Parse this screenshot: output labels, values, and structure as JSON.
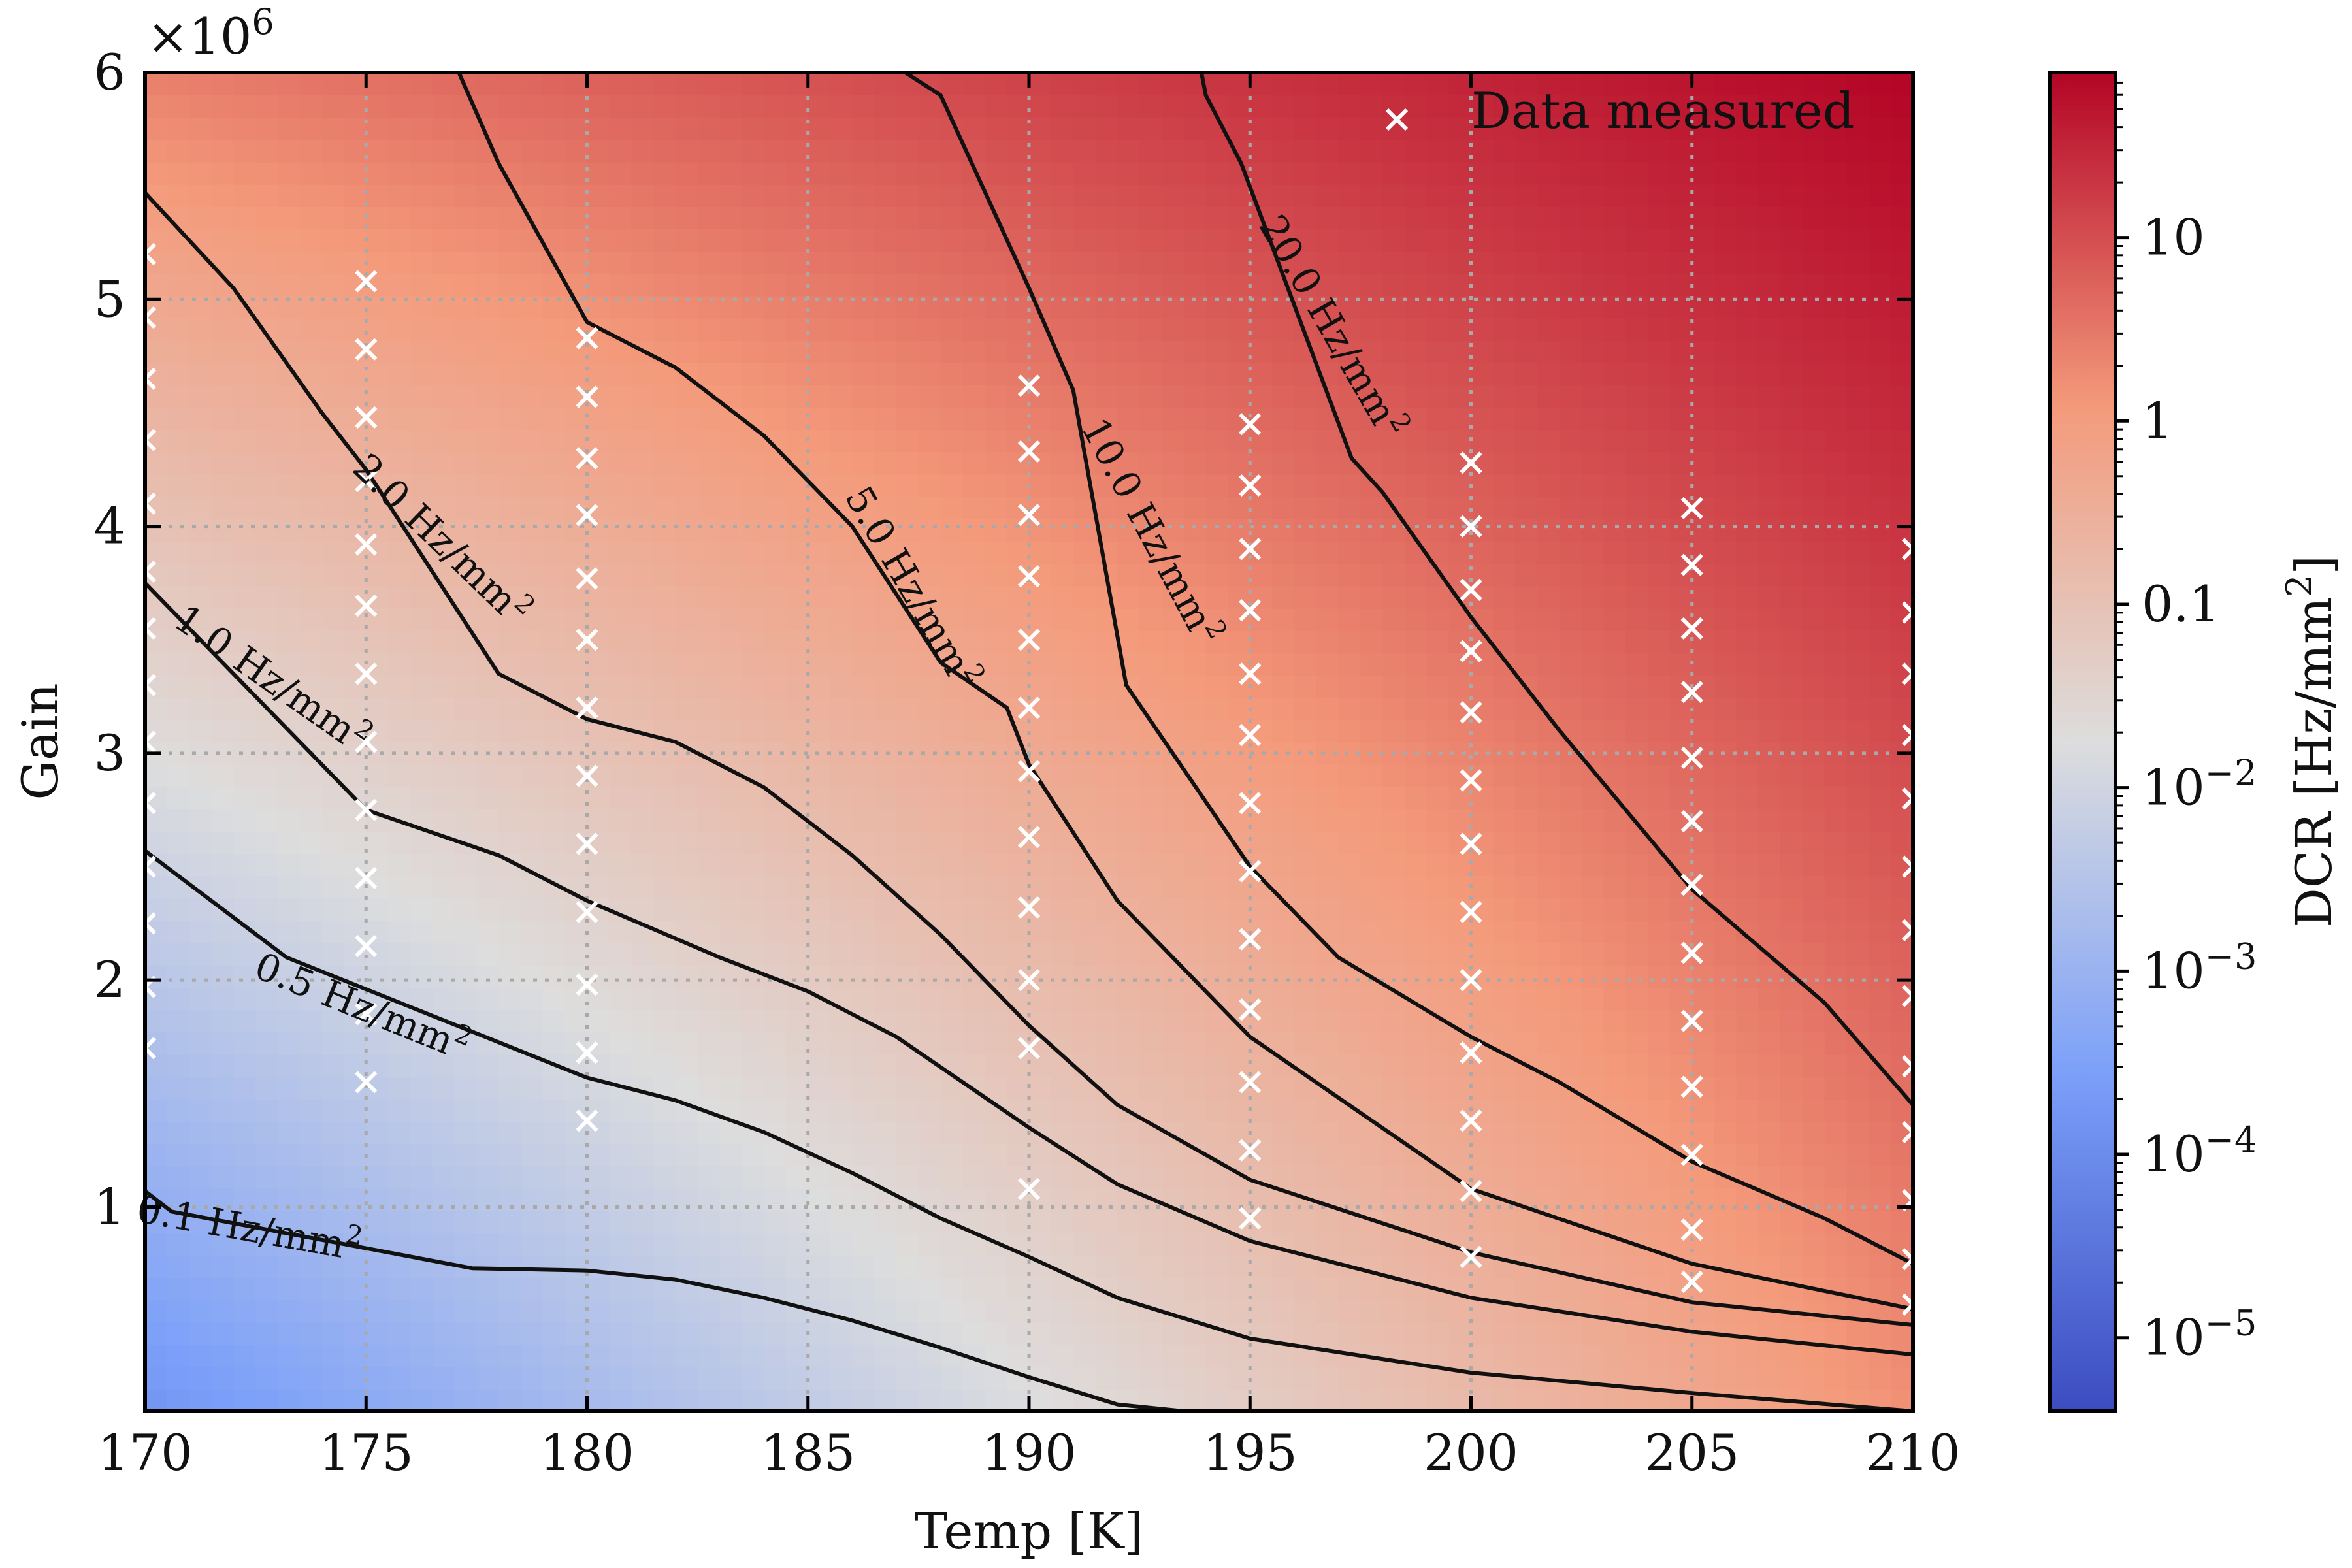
{
  "chart_data": {
    "type": "heatmap",
    "xlabel": "Temp [K]",
    "ylabel": "Gain",
    "y_offset_label": "×10",
    "y_offset_exp": "6",
    "xlim": [
      170,
      210
    ],
    "ylim": [
      0.1,
      6.0
    ],
    "x_ticks": [
      170,
      175,
      180,
      185,
      190,
      195,
      200,
      205,
      210
    ],
    "x_tick_labels": [
      "170",
      "175",
      "180",
      "185",
      "190",
      "195",
      "200",
      "205",
      "210"
    ],
    "y_ticks": [
      1,
      2,
      3,
      4,
      5,
      6
    ],
    "y_tick_labels": [
      "1",
      "2",
      "3",
      "4",
      "5",
      "6"
    ],
    "grid": true,
    "legend": {
      "label": "Data measured",
      "marker": "x",
      "marker_color": "#ffffff",
      "placement": "top-right"
    },
    "colorbar": {
      "label_main": "DCR [Hz/mm",
      "label_sup": "2",
      "label_end": "]",
      "scale": "log",
      "colormap": "coolwarm",
      "range_log10": [
        -5.4,
        1.9
      ],
      "ticks": [
        {
          "log10": 1,
          "base": "10",
          "sup": ""
        },
        {
          "log10": 0,
          "base": "1",
          "sup": ""
        },
        {
          "log10": -1,
          "base": "0.1",
          "sup": ""
        },
        {
          "log10": -2,
          "base": "10",
          "sup": "−2"
        },
        {
          "log10": -3,
          "base": "10",
          "sup": "−3"
        },
        {
          "log10": -4,
          "base": "10",
          "sup": "−4"
        },
        {
          "log10": -5,
          "base": "10",
          "sup": "−5"
        }
      ]
    },
    "field_corners_log10": {
      "x170_y0p1": -3.8,
      "x210_y0p1": 0.2,
      "x170_y6": 0.4,
      "x210_y6": 1.9
    },
    "measured_points": [
      {
        "x": 170,
        "y": [
          1.7,
          1.97,
          2.25,
          2.5,
          2.78,
          3.05,
          3.3,
          3.55,
          3.8,
          4.1,
          4.38,
          4.65,
          4.92,
          5.2
        ]
      },
      {
        "x": 175,
        "y": [
          1.55,
          1.85,
          2.15,
          2.45,
          2.75,
          3.05,
          3.35,
          3.65,
          3.92,
          4.2,
          4.48,
          4.78,
          5.08
        ]
      },
      {
        "x": 180,
        "y": [
          1.38,
          1.68,
          1.98,
          2.3,
          2.6,
          2.9,
          3.2,
          3.5,
          3.77,
          4.05,
          4.3,
          4.57,
          4.83
        ]
      },
      {
        "x": 190,
        "y": [
          1.08,
          1.7,
          2.0,
          2.32,
          2.63,
          2.92,
          3.2,
          3.5,
          3.78,
          4.05,
          4.33,
          4.62
        ]
      },
      {
        "x": 195,
        "y": [
          0.95,
          1.25,
          1.55,
          1.87,
          2.18,
          2.48,
          2.78,
          3.08,
          3.35,
          3.63,
          3.9,
          4.18,
          4.45
        ]
      },
      {
        "x": 200,
        "y": [
          0.78,
          1.07,
          1.38,
          1.68,
          2.0,
          2.3,
          2.6,
          2.88,
          3.18,
          3.45,
          3.72,
          4.0,
          4.28
        ]
      },
      {
        "x": 205,
        "y": [
          0.67,
          0.9,
          1.23,
          1.53,
          1.82,
          2.12,
          2.42,
          2.7,
          2.98,
          3.27,
          3.55,
          3.83,
          4.08
        ]
      },
      {
        "x": 210,
        "y": [
          0.57,
          0.77,
          1.03,
          1.33,
          1.62,
          1.93,
          2.22,
          2.5,
          2.8,
          3.08,
          3.35,
          3.62,
          3.9
        ]
      }
    ],
    "contours": [
      {
        "label": "0.1 Hz/mm",
        "sup": "2",
        "label_at": [
          172.3,
          0.85
        ],
        "label_angle": 10,
        "points": [
          [
            170,
            1.07
          ],
          [
            170.6,
            0.98
          ],
          [
            177.4,
            0.73
          ],
          [
            180,
            0.72
          ],
          [
            182,
            0.68
          ],
          [
            184,
            0.6
          ],
          [
            186,
            0.5
          ],
          [
            188,
            0.38
          ],
          [
            190,
            0.25
          ],
          [
            192,
            0.13
          ],
          [
            193.5,
            0.1
          ]
        ]
      },
      {
        "label": "0.5 Hz/mm",
        "sup": "2",
        "label_at": [
          174.8,
          1.83
        ],
        "label_angle": 22,
        "points": [
          [
            170,
            2.57
          ],
          [
            173.2,
            2.1
          ],
          [
            180,
            1.57
          ],
          [
            182,
            1.47
          ],
          [
            184,
            1.33
          ],
          [
            186,
            1.15
          ],
          [
            188,
            0.95
          ],
          [
            190,
            0.78
          ],
          [
            192,
            0.6
          ],
          [
            195,
            0.42
          ],
          [
            200,
            0.27
          ],
          [
            205,
            0.18
          ],
          [
            210,
            0.1
          ]
        ]
      },
      {
        "label": "1.0 Hz/mm",
        "sup": "2",
        "label_at": [
          172.7,
          3.28
        ],
        "label_angle": 35,
        "points": [
          [
            170,
            3.75
          ],
          [
            175,
            2.75
          ],
          [
            178,
            2.55
          ],
          [
            180,
            2.35
          ],
          [
            183,
            2.1
          ],
          [
            185,
            1.95
          ],
          [
            187,
            1.75
          ],
          [
            190,
            1.35
          ],
          [
            192,
            1.1
          ],
          [
            195,
            0.85
          ],
          [
            200,
            0.6
          ],
          [
            205,
            0.45
          ],
          [
            210,
            0.35
          ]
        ]
      },
      {
        "label": "2.0 Hz/mm",
        "sup": "2",
        "label_at": [
          176.5,
          3.9
        ],
        "label_angle": 44,
        "points": [
          [
            170,
            5.47
          ],
          [
            172,
            5.05
          ],
          [
            174,
            4.5
          ],
          [
            175,
            4.25
          ],
          [
            178,
            3.35
          ],
          [
            180,
            3.15
          ],
          [
            182,
            3.05
          ],
          [
            184,
            2.85
          ],
          [
            186,
            2.55
          ],
          [
            188,
            2.2
          ],
          [
            190,
            1.8
          ],
          [
            192,
            1.45
          ],
          [
            195,
            1.12
          ],
          [
            200,
            0.8
          ],
          [
            205,
            0.58
          ],
          [
            210,
            0.48
          ]
        ]
      },
      {
        "label": "5.0 Hz/mm",
        "sup": "2",
        "label_at": [
          187.1,
          3.7
        ],
        "label_angle": 60,
        "points": [
          [
            177.1,
            6.0
          ],
          [
            178,
            5.6
          ],
          [
            180,
            4.9
          ],
          [
            182,
            4.7
          ],
          [
            184,
            4.4
          ],
          [
            186,
            4.0
          ],
          [
            188,
            3.4
          ],
          [
            189.5,
            3.2
          ],
          [
            190,
            2.95
          ],
          [
            192,
            2.35
          ],
          [
            195,
            1.75
          ],
          [
            200,
            1.08
          ],
          [
            205,
            0.75
          ],
          [
            210,
            0.55
          ]
        ]
      },
      {
        "label": "10.0 Hz/mm",
        "sup": "2",
        "label_at": [
          192.5,
          3.95
        ],
        "label_angle": 62,
        "points": [
          [
            187.2,
            6.0
          ],
          [
            188,
            5.9
          ],
          [
            190,
            5.05
          ],
          [
            191,
            4.6
          ],
          [
            192.2,
            3.3
          ],
          [
            195,
            2.5
          ],
          [
            197,
            2.1
          ],
          [
            200,
            1.75
          ],
          [
            202,
            1.55
          ],
          [
            205,
            1.2
          ],
          [
            208,
            0.95
          ],
          [
            210,
            0.75
          ]
        ]
      },
      {
        "label": "20.0 Hz/mm",
        "sup": "2",
        "label_at": [
          196.6,
          4.85
        ],
        "label_angle": 60,
        "points": [
          [
            193.9,
            6.0
          ],
          [
            194,
            5.9
          ],
          [
            194.8,
            5.6
          ],
          [
            197.3,
            4.3
          ],
          [
            198,
            4.15
          ],
          [
            200,
            3.6
          ],
          [
            202,
            3.1
          ],
          [
            205,
            2.4
          ],
          [
            208,
            1.9
          ],
          [
            210,
            1.45
          ]
        ]
      }
    ]
  }
}
